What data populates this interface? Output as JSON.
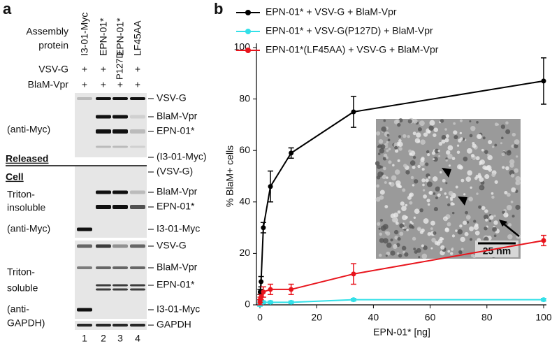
{
  "panel_a": {
    "label": "a",
    "assembly": [
      "Assembly",
      "protein"
    ],
    "lanes": [
      "I3-01-Myc",
      "EPN-01*",
      "EPN-01*",
      "LF45AA"
    ],
    "rows": [
      {
        "name": "VSV-G",
        "marks": [
          "+",
          "+",
          "P127D",
          "+"
        ]
      },
      {
        "name": "BlaM-Vpr",
        "marks": [
          "+",
          "+",
          "+",
          "+"
        ]
      }
    ],
    "left_labels": [
      "(anti-Myc)",
      "Released",
      "Cell",
      "Triton-",
      "insoluble",
      "(anti-Myc)",
      "Triton-",
      "soluble",
      "(anti-",
      "GAPDH)"
    ],
    "right_labels": [
      "VSV-G",
      "BlaM-Vpr",
      "EPN-01*",
      "(I3-01-Myc)",
      "(VSV-G)",
      "BlaM-Vpr",
      "EPN-01*",
      "I3-01-Myc",
      "VSV-G",
      "BlaM-Vpr",
      "EPN-01*",
      "I3-01-Myc",
      "GAPDH"
    ],
    "lane_numbers": [
      "1",
      "2",
      "3",
      "4"
    ]
  },
  "chart_data": {
    "type": "line",
    "label": "b",
    "xlabel": "EPN-01* [ng]",
    "ylabel": "% BlaM+ cells",
    "x": [
      0,
      0.1,
      0.4,
      1.2,
      3.7,
      11,
      33,
      100
    ],
    "series": [
      {
        "name": "EPN-01* + VSV-G + BlaM-Vpr",
        "color": "#000000",
        "values": [
          1,
          5,
          9,
          30,
          46,
          59,
          75,
          87
        ],
        "errors": [
          1,
          1,
          2,
          2,
          6,
          2,
          6,
          9
        ]
      },
      {
        "name": "EPN-01* + VSV-G(P127D) + BlaM-Vpr",
        "color": "#33e0e8",
        "values": [
          0,
          1,
          1,
          1,
          1,
          1,
          2,
          2
        ],
        "errors": [
          0.5,
          0.5,
          0.5,
          0.5,
          0.5,
          0.5,
          0.5,
          0.5
        ]
      },
      {
        "name": "EPN-01*(LF45AA) + VSV-G + BlaM-Vpr",
        "color": "#e8141c",
        "values": [
          1,
          2,
          3,
          5,
          6,
          6,
          12,
          25
        ],
        "errors": [
          1,
          1,
          1,
          2,
          2,
          2,
          4,
          2
        ]
      }
    ],
    "xlim": [
      0,
      100
    ],
    "xticks": [
      0,
      20,
      40,
      60,
      80,
      100
    ],
    "ylim": [
      0,
      100
    ],
    "yticks": [
      0,
      20,
      40,
      60,
      80,
      100
    ],
    "inset": {
      "scale_bar": "25 nm"
    }
  }
}
